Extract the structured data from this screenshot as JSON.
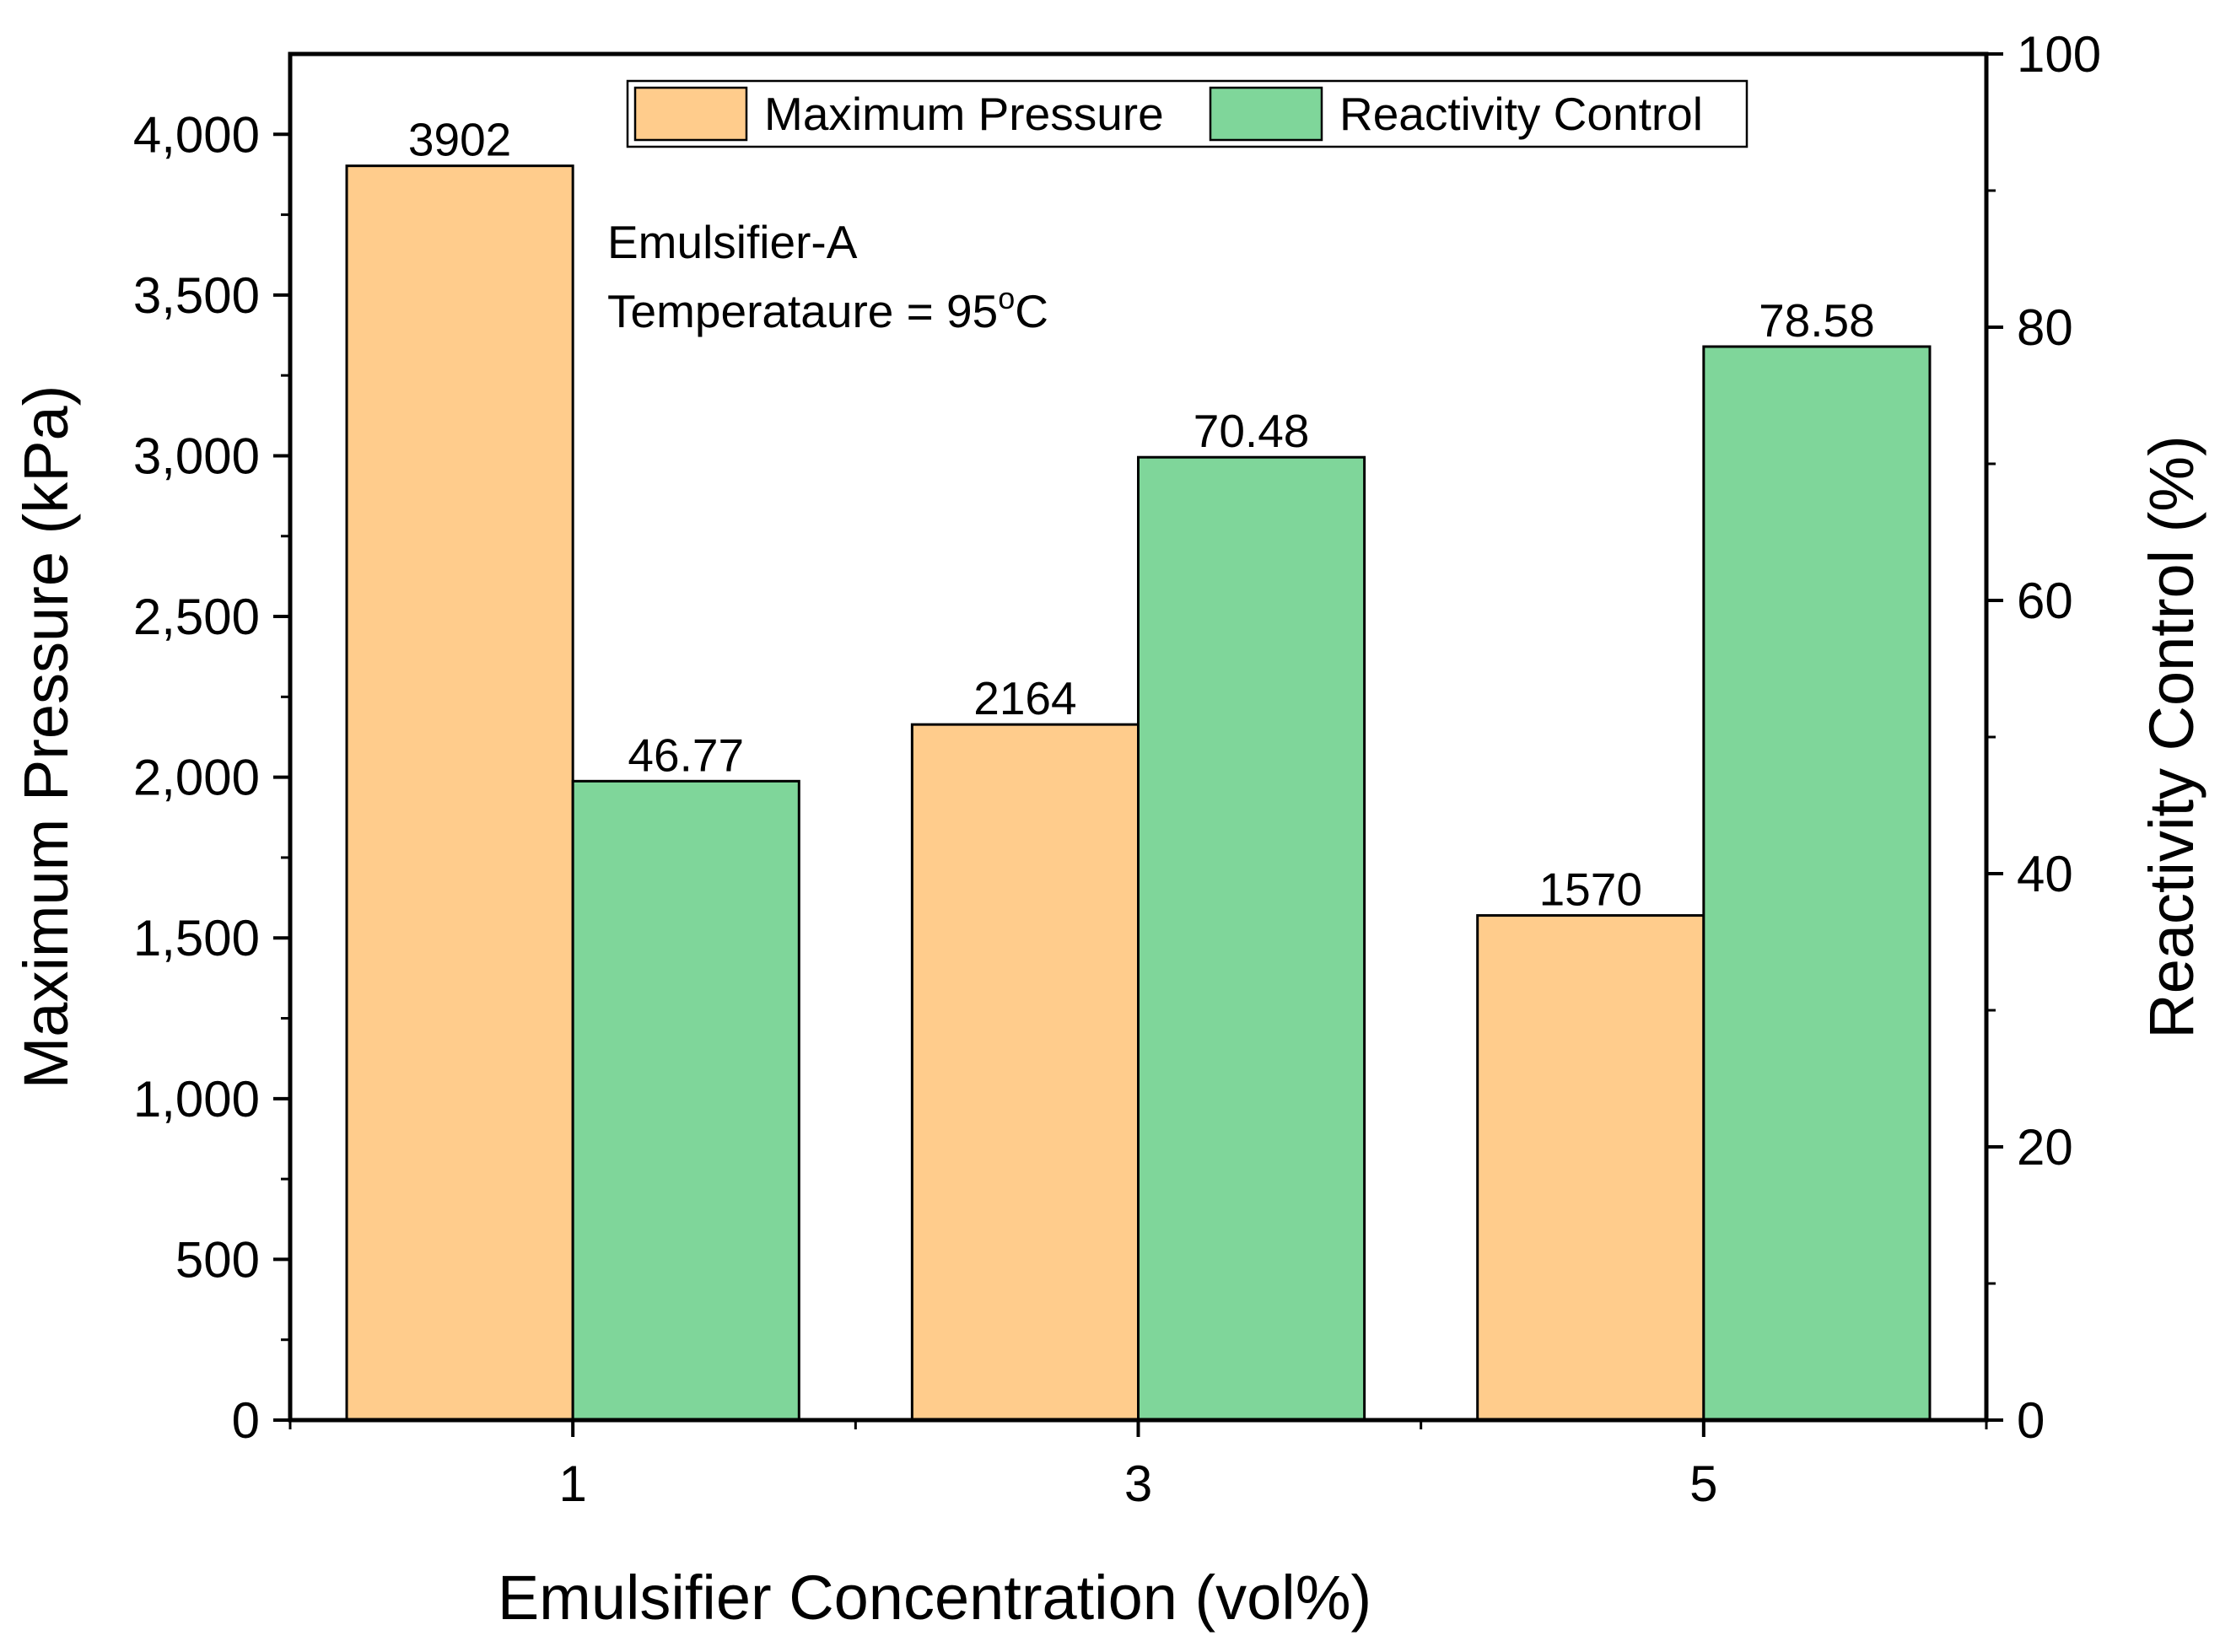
{
  "chart_data": {
    "type": "bar",
    "title": "",
    "xlabel": "Emulsifier Concentration (vol%)",
    "ylabel_left": "Maximum Pressure (kPa)",
    "ylabel_right": "Reactivity Control (%)",
    "categories": [
      "1",
      "3",
      "5"
    ],
    "ylim_left": [
      0,
      4250
    ],
    "ylim_right": [
      0,
      100
    ],
    "left_ticks": [
      0,
      500,
      1000,
      1500,
      2000,
      2500,
      3000,
      3500,
      4000
    ],
    "left_tick_labels": [
      "0",
      "500",
      "1,000",
      "1,500",
      "2,000",
      "2,500",
      "3,000",
      "3,500",
      "4,000"
    ],
    "right_ticks": [
      0,
      20,
      40,
      60,
      80,
      100
    ],
    "right_tick_labels": [
      "0",
      "20",
      "40",
      "60",
      "80",
      "100"
    ],
    "series": [
      {
        "name": "Maximum Pressure",
        "axis": "left",
        "color": "#FFCC8C",
        "values": [
          3902,
          2164,
          1570
        ],
        "labels": [
          "3902",
          "2164",
          "1570"
        ]
      },
      {
        "name": "Reactivity Control",
        "axis": "right",
        "color": "#7FD69A",
        "values": [
          46.77,
          70.48,
          78.58
        ],
        "labels": [
          "46.77",
          "70.48",
          "78.58"
        ]
      }
    ],
    "legend_position": "top-center",
    "grid": false,
    "annotations": [
      "Emulsifier-A",
      "Temperataure = 95",
      "o",
      "C"
    ]
  }
}
